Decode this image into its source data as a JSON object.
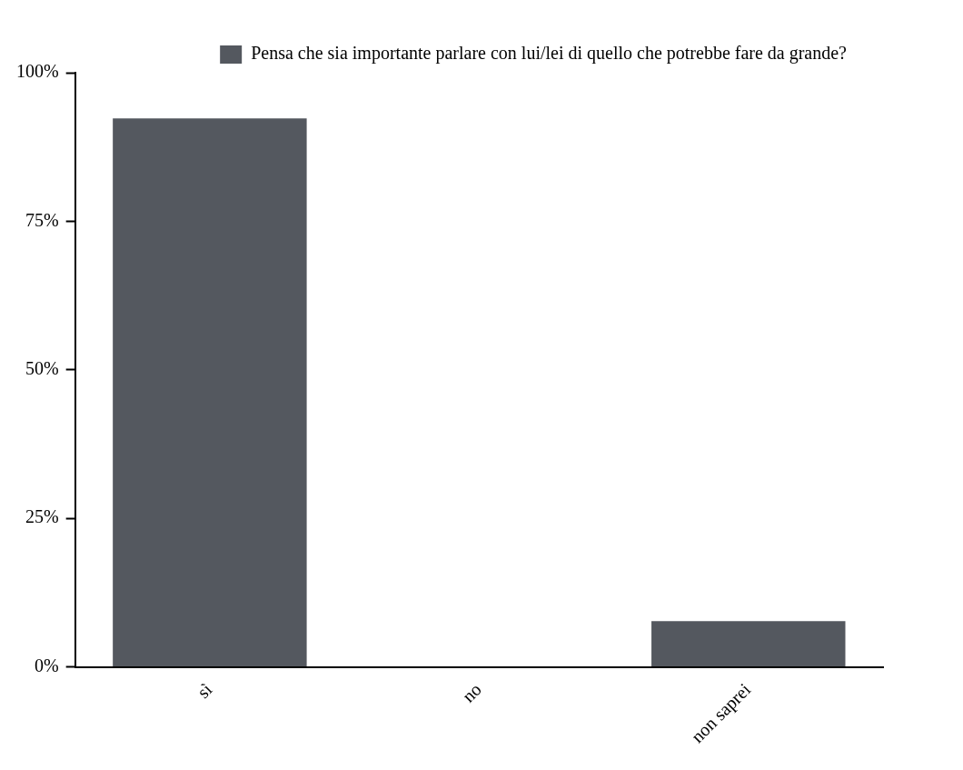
{
  "chart_data": {
    "type": "bar",
    "categories": [
      "sì",
      "no",
      "non saprei"
    ],
    "series": [
      {
        "name": "Pensa che sia importante parlare con lui/lei di quello che potrebbe fare da grande?",
        "color": "#54585f",
        "values": [
          92.3,
          0,
          7.7
        ]
      }
    ],
    "ylim": [
      0,
      100
    ],
    "yticks": [
      {
        "value": 0,
        "label": "0%"
      },
      {
        "value": 25,
        "label": "25%"
      },
      {
        "value": 50,
        "label": "50%"
      },
      {
        "value": 75,
        "label": "75%"
      },
      {
        "value": 100,
        "label": "100%"
      }
    ],
    "grid": false,
    "legend": "top right"
  }
}
